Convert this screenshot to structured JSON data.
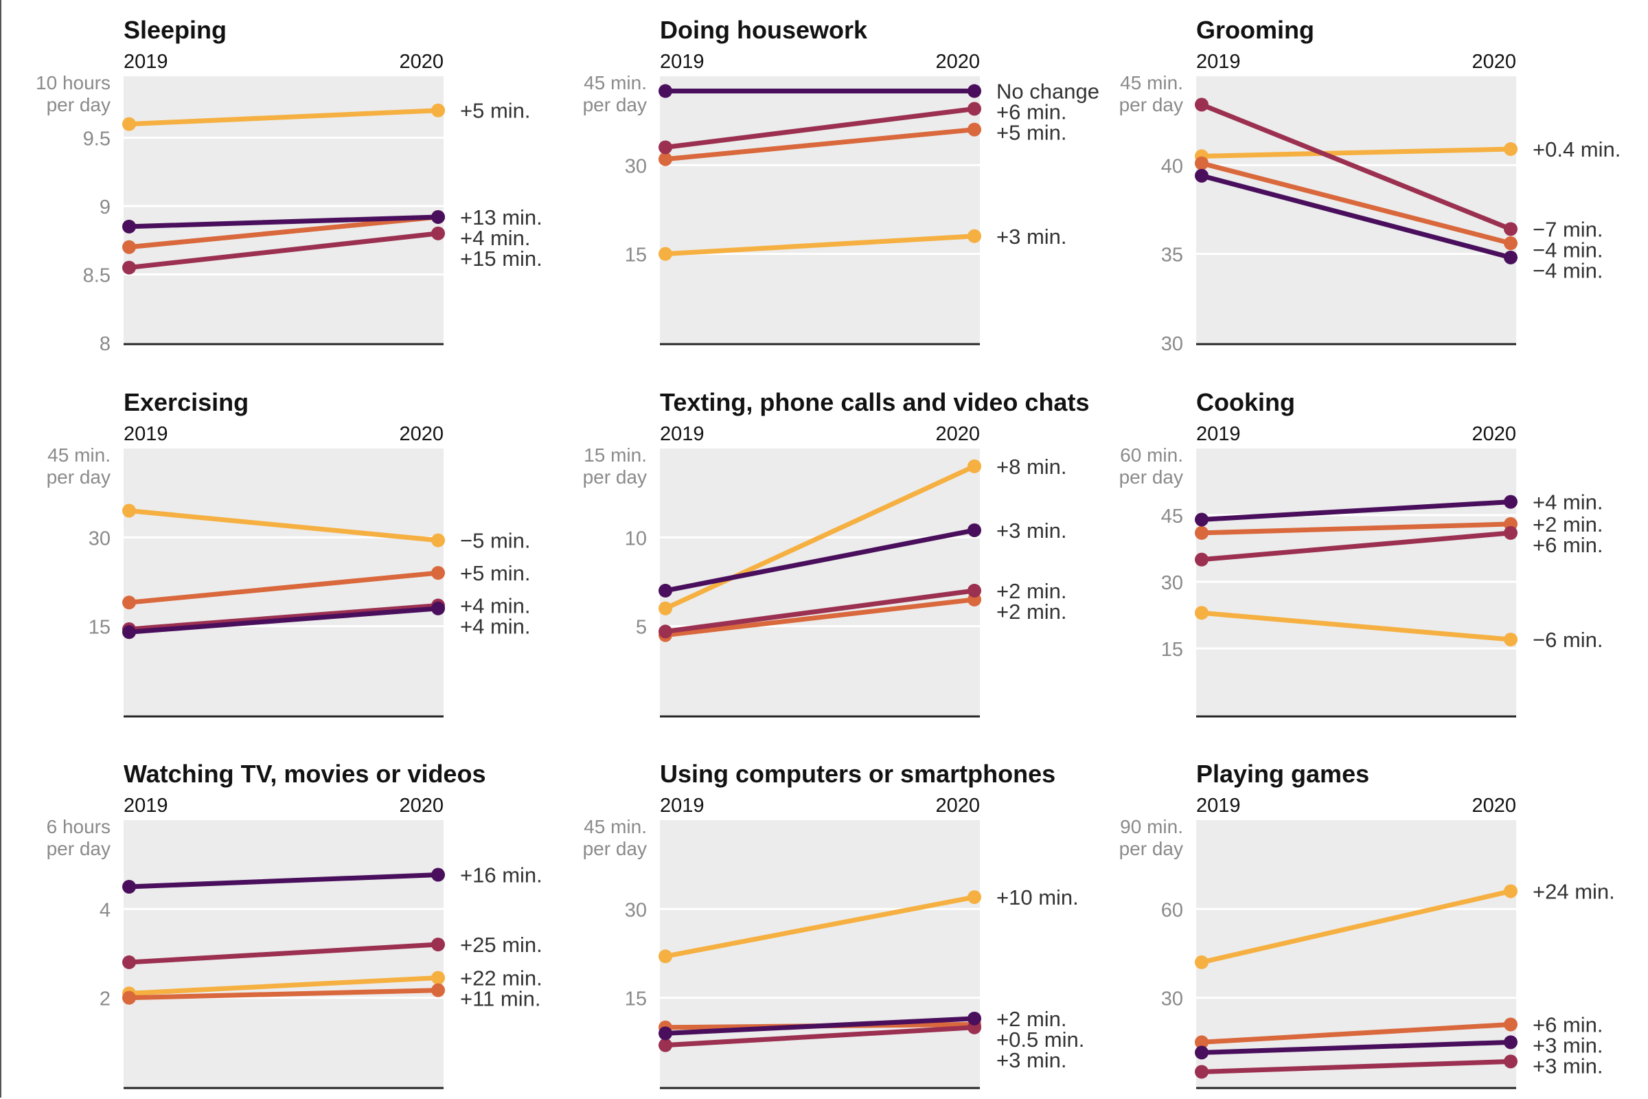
{
  "colors": {
    "series": [
      "#f5b041",
      "#d9683c",
      "#9b3050",
      "#4a0f5c"
    ],
    "panel_bg": "#ececec",
    "grid": "#ffffff",
    "text": "#121212",
    "axis_text": "#8a8a8a"
  },
  "chart_data": [
    {
      "type": "line",
      "title": "Sleeping",
      "x": [
        "2019",
        "2020"
      ],
      "ylim": [
        8,
        9.95
      ],
      "yticks": [
        8,
        8.5,
        9,
        9.5
      ],
      "unit_label": [
        "10 hours",
        "per day"
      ],
      "series": [
        {
          "values": [
            9.6,
            9.7
          ],
          "label": "+5 min."
        },
        {
          "values": [
            8.7,
            8.92
          ],
          "label": "+13 min."
        },
        {
          "values": [
            8.55,
            8.8
          ],
          "label": "+15 min."
        },
        {
          "values": [
            8.85,
            8.92
          ],
          "label": "+4 min."
        }
      ]
    },
    {
      "type": "line",
      "title": "Doing housework",
      "x": [
        "2019",
        "2020"
      ],
      "ylim": [
        0,
        45
      ],
      "yticks": [
        15,
        30
      ],
      "unit_label": [
        "45 min.",
        "per day"
      ],
      "series": [
        {
          "values": [
            15,
            18
          ],
          "label": "+3 min."
        },
        {
          "values": [
            31,
            36
          ],
          "label": "+5 min."
        },
        {
          "values": [
            33,
            39.5
          ],
          "label": "+6 min."
        },
        {
          "values": [
            42.5,
            42.5
          ],
          "label": "No change"
        }
      ]
    },
    {
      "type": "line",
      "title": "Grooming",
      "x": [
        "2019",
        "2020"
      ],
      "ylim": [
        30,
        45
      ],
      "yticks": [
        30,
        35,
        40
      ],
      "unit_label": [
        "45 min.",
        "per day"
      ],
      "series": [
        {
          "values": [
            40.5,
            40.9
          ],
          "label": "+0.4 min."
        },
        {
          "values": [
            40.1,
            35.6
          ],
          "label": "−4 min."
        },
        {
          "values": [
            43.4,
            36.4
          ],
          "label": "−7 min."
        },
        {
          "values": [
            39.4,
            34.8
          ],
          "label": "−4 min."
        }
      ]
    },
    {
      "type": "line",
      "title": "Exercising",
      "x": [
        "2019",
        "2020"
      ],
      "ylim": [
        0,
        45
      ],
      "yticks": [
        15,
        30
      ],
      "unit_label": [
        "45 min.",
        "per day"
      ],
      "series": [
        {
          "values": [
            34.5,
            29.5
          ],
          "label": "−5 min."
        },
        {
          "values": [
            19,
            24
          ],
          "label": "+5 min."
        },
        {
          "values": [
            14.5,
            18.5
          ],
          "label": "+4 min."
        },
        {
          "values": [
            14,
            18
          ],
          "label": "+4 min."
        }
      ]
    },
    {
      "type": "line",
      "title": "Texting, phone calls and video chats",
      "x": [
        "2019",
        "2020"
      ],
      "ylim": [
        0,
        15
      ],
      "yticks": [
        5,
        10
      ],
      "unit_label": [
        "15 min.",
        "per day"
      ],
      "series": [
        {
          "values": [
            6,
            14
          ],
          "label": "+8 min."
        },
        {
          "values": [
            4.5,
            6.5
          ],
          "label": "+2 min."
        },
        {
          "values": [
            4.7,
            7
          ],
          "label": "+2 min."
        },
        {
          "values": [
            7,
            10.4
          ],
          "label": "+3 min."
        }
      ]
    },
    {
      "type": "line",
      "title": "Cooking",
      "x": [
        "2019",
        "2020"
      ],
      "ylim": [
        0,
        60
      ],
      "yticks": [
        15,
        30,
        45
      ],
      "unit_label": [
        "60 min.",
        "per day"
      ],
      "series": [
        {
          "values": [
            23,
            17
          ],
          "label": "−6 min."
        },
        {
          "values": [
            41,
            43
          ],
          "label": "+2 min."
        },
        {
          "values": [
            35,
            41
          ],
          "label": "+6 min."
        },
        {
          "values": [
            44,
            48
          ],
          "label": "+4 min."
        }
      ]
    },
    {
      "type": "line",
      "title": "Watching TV, movies or videos",
      "x": [
        "2019",
        "2020"
      ],
      "ylim": [
        0,
        6
      ],
      "yticks": [
        2,
        4
      ],
      "unit_label": [
        "6 hours",
        "per day"
      ],
      "series": [
        {
          "values": [
            2.1,
            2.45
          ],
          "label": "+22 min."
        },
        {
          "values": [
            2,
            2.17
          ],
          "label": "+11 min."
        },
        {
          "values": [
            2.8,
            3.2
          ],
          "label": "+25 min."
        },
        {
          "values": [
            4.5,
            4.77
          ],
          "label": "+16 min."
        }
      ]
    },
    {
      "type": "line",
      "title": "Using computers or smartphones",
      "x": [
        "2019",
        "2020"
      ],
      "ylim": [
        0,
        45
      ],
      "yticks": [
        15,
        30
      ],
      "unit_label": [
        "45 min.",
        "per day"
      ],
      "series": [
        {
          "values": [
            22,
            32
          ],
          "label": "+10 min."
        },
        {
          "values": [
            10,
            10.5
          ],
          "label": "+0.5 min."
        },
        {
          "values": [
            7,
            10
          ],
          "label": "+3 min."
        },
        {
          "values": [
            9,
            11.5
          ],
          "label": "+2 min."
        }
      ]
    },
    {
      "type": "line",
      "title": "Playing games",
      "x": [
        "2019",
        "2020"
      ],
      "ylim": [
        0,
        90
      ],
      "yticks": [
        30,
        60
      ],
      "unit_label": [
        "90 min.",
        "per day"
      ],
      "series": [
        {
          "values": [
            42,
            66
          ],
          "label": "+24 min."
        },
        {
          "values": [
            15,
            21
          ],
          "label": "+6 min."
        },
        {
          "values": [
            5,
            8.5
          ],
          "label": "+3 min."
        },
        {
          "values": [
            11.5,
            15
          ],
          "label": "+3 min."
        }
      ]
    }
  ]
}
